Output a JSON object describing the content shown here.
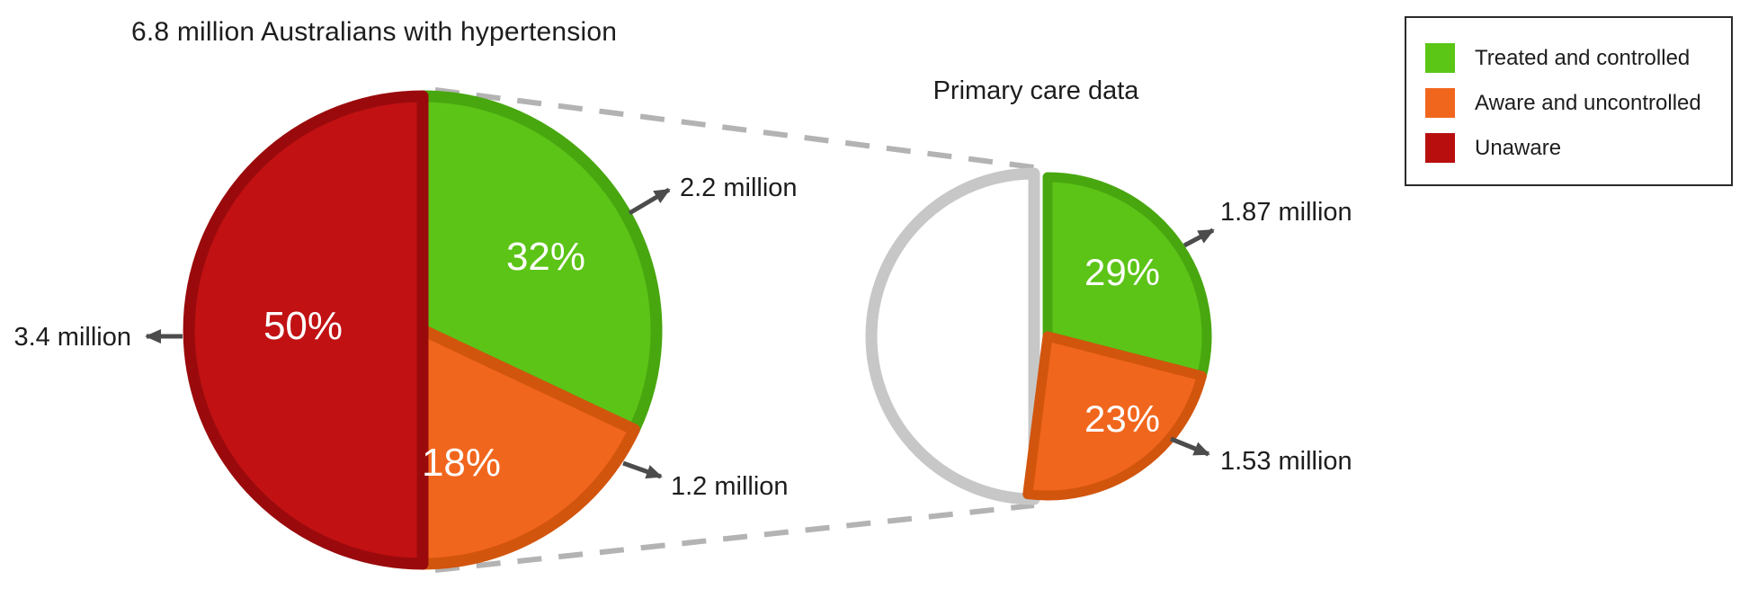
{
  "title": "6.8 million Australians with hypertension",
  "secondary_title": "Primary care data",
  "legend": {
    "items": [
      {
        "label": "Treated and controlled",
        "color": "#5bc615"
      },
      {
        "label": "Aware and uncontrolled",
        "color": "#f1661d"
      },
      {
        "label": "Unaware",
        "color": "#b90e0e"
      }
    ]
  },
  "colors": {
    "green_fill": "#5cc417",
    "green_border": "#48a70f",
    "orange_fill": "#f1661d",
    "orange_border": "#d2550d",
    "red_fill": "#c11113",
    "red_border": "#9a0a0c",
    "empty_half_stroke": "#c7c7c7",
    "connector_gray": "#b3b3b3",
    "arrow_gray": "#4c4c4c"
  },
  "chart_data": [
    {
      "type": "pie",
      "title": "6.8 million Australians with hypertension",
      "total": "6.8 million",
      "slices": [
        {
          "label": "Treated and controlled",
          "pct": 32,
          "pct_label": "32%",
          "value": "2.2 million",
          "color": "#5cc417",
          "border": "#48a70f"
        },
        {
          "label": "Aware and uncontrolled",
          "pct": 18,
          "pct_label": "18%",
          "value": "1.2 million",
          "color": "#f1661d",
          "border": "#d2550d"
        },
        {
          "label": "Unaware",
          "pct": 50,
          "pct_label": "50%",
          "value": "3.4 million",
          "color": "#c11113",
          "border": "#9a0a0c"
        }
      ]
    },
    {
      "type": "pie",
      "title": "Primary care data",
      "slices": [
        {
          "label": "Treated and controlled",
          "pct": 29,
          "pct_label": "29%",
          "value": "1.87 million",
          "color": "#5cc417",
          "border": "#48a70f"
        },
        {
          "label": "Aware and uncontrolled",
          "pct": 23,
          "pct_label": "23%",
          "value": "1.53 million",
          "color": "#f1661d",
          "border": "#d2550d"
        },
        {
          "label": "remainder",
          "pct": 48,
          "pct_label": "",
          "value": "",
          "color": "none",
          "border": "none"
        }
      ]
    }
  ]
}
